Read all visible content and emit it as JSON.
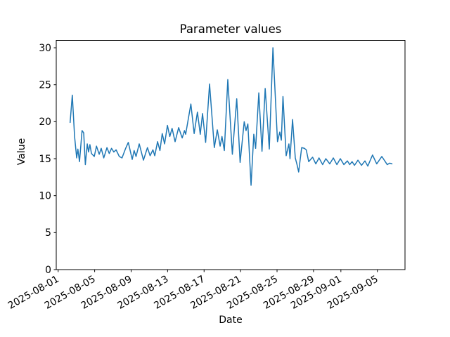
{
  "chart_data": {
    "type": "line",
    "title": "Parameter values",
    "xlabel": "Date",
    "ylabel": "Value",
    "grid": false,
    "legend": null,
    "line_color": "#1f77b4",
    "line_width": 1.5,
    "axes_color": "#000000",
    "background": "#ffffff",
    "x_unit": "days since 2025-08-01",
    "xlim": [
      -0.21,
      38.03
    ],
    "ylim": [
      0,
      31
    ],
    "yticks": [
      0,
      5,
      10,
      15,
      20,
      25,
      30
    ],
    "xticks": [
      {
        "day": 0,
        "label": "2025-08-01"
      },
      {
        "day": 4,
        "label": "2025-08-05"
      },
      {
        "day": 8,
        "label": "2025-08-09"
      },
      {
        "day": 12,
        "label": "2025-08-13"
      },
      {
        "day": 16,
        "label": "2025-08-17"
      },
      {
        "day": 20,
        "label": "2025-08-21"
      },
      {
        "day": 24,
        "label": "2025-08-25"
      },
      {
        "day": 28,
        "label": "2025-08-29"
      },
      {
        "day": 31,
        "label": "2025-09-01"
      },
      {
        "day": 35,
        "label": "2025-09-05"
      }
    ],
    "series": [
      {
        "x": [
          1.31,
          1.55,
          1.8,
          2.03,
          2.16,
          2.34,
          2.62,
          2.8,
          2.98,
          3.19,
          3.33,
          3.48,
          3.65,
          3.96,
          4.2,
          4.5,
          4.72,
          5.0,
          5.35,
          5.6,
          5.85,
          6.1,
          6.35,
          6.7,
          7.0,
          7.4,
          7.69,
          8.12,
          8.33,
          8.54,
          8.89,
          9.35,
          9.79,
          10.08,
          10.39,
          10.59,
          10.9,
          11.16,
          11.41,
          11.67,
          11.98,
          12.24,
          12.49,
          12.82,
          13.21,
          13.6,
          13.85,
          13.98,
          14.55,
          14.91,
          15.27,
          15.58,
          15.83,
          16.17,
          16.6,
          17.12,
          17.45,
          17.76,
          17.96,
          18.22,
          18.6,
          19.1,
          19.58,
          19.95,
          20.4,
          20.6,
          20.8,
          21.15,
          21.45,
          21.65,
          22.0,
          22.35,
          22.7,
          23.15,
          23.55,
          24.05,
          24.3,
          24.47,
          24.65,
          25.0,
          25.3,
          25.42,
          25.7,
          26.0,
          26.19,
          26.37,
          26.7,
          27.0,
          27.2,
          27.47,
          27.9,
          28.25,
          28.6,
          29.0,
          29.35,
          29.78,
          30.17,
          30.56,
          30.94,
          31.33,
          31.71,
          31.97,
          32.23,
          32.49,
          32.87,
          33.26,
          33.64,
          33.95,
          34.47,
          34.93,
          35.49,
          36.08,
          36.35,
          36.6
        ],
        "y": [
          19.9,
          23.6,
          18.0,
          15.1,
          16.3,
          14.6,
          18.8,
          18.5,
          14.2,
          17.0,
          15.9,
          16.9,
          15.7,
          15.3,
          16.7,
          15.6,
          16.4,
          15.1,
          16.5,
          15.7,
          16.4,
          15.9,
          16.2,
          15.3,
          15.1,
          16.4,
          17.2,
          14.9,
          16.1,
          15.3,
          17.0,
          14.8,
          16.5,
          15.4,
          16.2,
          15.4,
          17.3,
          16.1,
          18.4,
          17.0,
          19.5,
          18.0,
          19.1,
          17.3,
          19.2,
          17.8,
          18.8,
          18.3,
          22.4,
          18.4,
          21.3,
          18.3,
          21.1,
          17.2,
          25.1,
          16.5,
          18.9,
          16.7,
          18.0,
          16.1,
          25.7,
          15.6,
          23.1,
          14.5,
          20.0,
          18.8,
          19.7,
          11.4,
          18.3,
          16.4,
          23.9,
          16.0,
          24.5,
          16.3,
          30.0,
          17.3,
          18.6,
          17.5,
          23.4,
          15.4,
          17.0,
          15.0,
          20.3,
          15.1,
          14.2,
          13.2,
          16.5,
          16.4,
          16.2,
          14.6,
          15.2,
          14.3,
          15.1,
          14.2,
          15.0,
          14.3,
          15.1,
          14.2,
          15.0,
          14.2,
          14.7,
          14.2,
          14.6,
          14.1,
          14.8,
          14.1,
          14.7,
          14.0,
          15.5,
          14.3,
          15.3,
          14.2,
          14.4,
          14.3
        ]
      }
    ]
  }
}
